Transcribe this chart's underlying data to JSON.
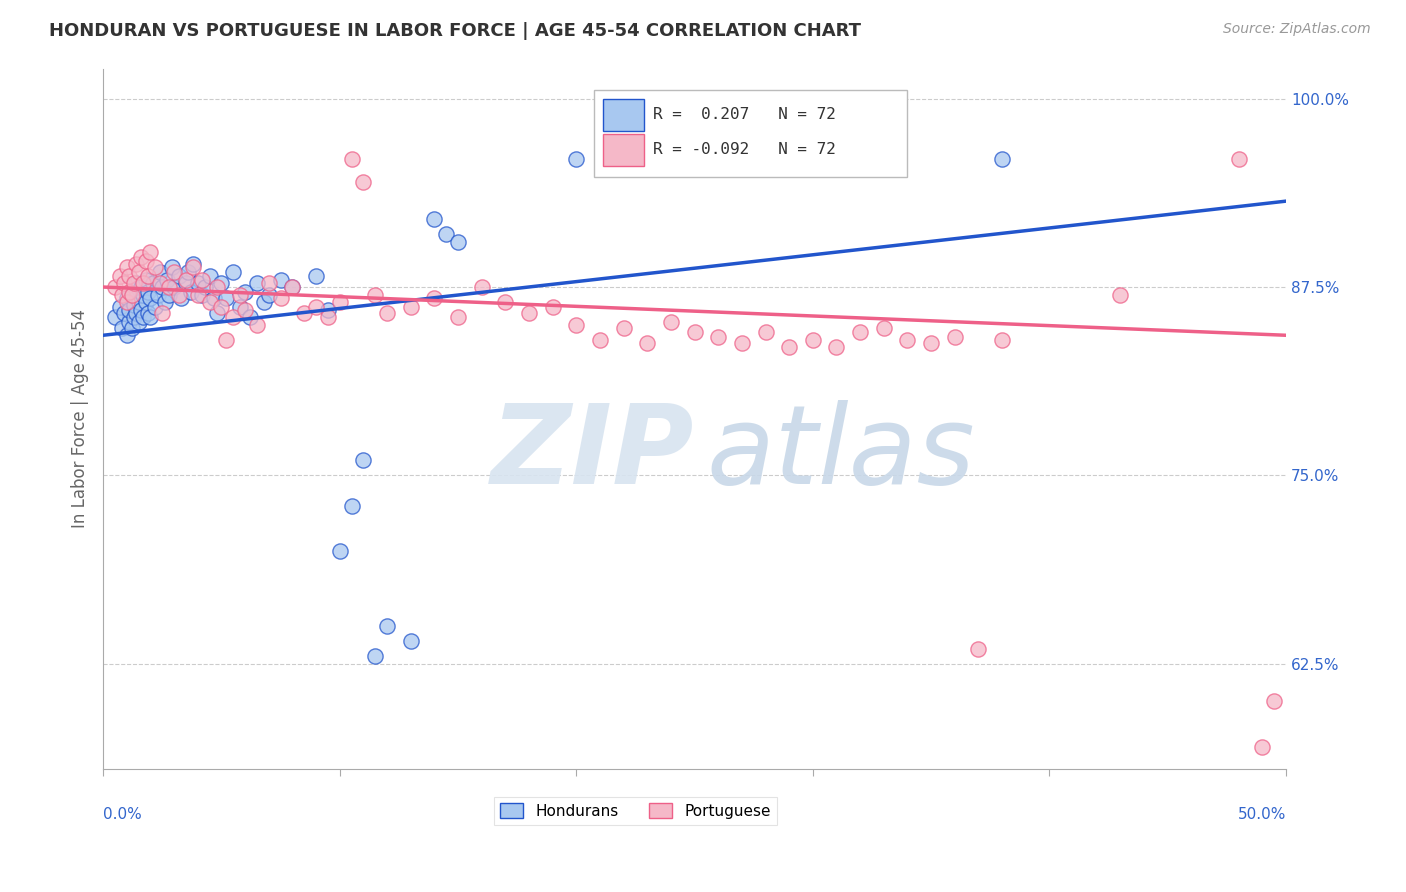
{
  "title": "HONDURAN VS PORTUGUESE IN LABOR FORCE | AGE 45-54 CORRELATION CHART",
  "source": "Source: ZipAtlas.com",
  "ylabel": "In Labor Force | Age 45-54",
  "ytick_labels": [
    "100.0%",
    "87.5%",
    "75.0%",
    "62.5%"
  ],
  "ytick_values": [
    1.0,
    0.875,
    0.75,
    0.625
  ],
  "xlim": [
    0.0,
    0.5
  ],
  "ylim": [
    0.555,
    1.02
  ],
  "blue_color": "#A8C8F0",
  "pink_color": "#F5B8C8",
  "blue_line_color": "#2255CC",
  "pink_line_color": "#EE6088",
  "scatter_size": 120,
  "blue_scatter": [
    [
      0.005,
      0.855
    ],
    [
      0.007,
      0.862
    ],
    [
      0.008,
      0.848
    ],
    [
      0.009,
      0.858
    ],
    [
      0.01,
      0.843
    ],
    [
      0.01,
      0.868
    ],
    [
      0.011,
      0.852
    ],
    [
      0.011,
      0.86
    ],
    [
      0.012,
      0.848
    ],
    [
      0.012,
      0.87
    ],
    [
      0.013,
      0.855
    ],
    [
      0.013,
      0.863
    ],
    [
      0.014,
      0.858
    ],
    [
      0.014,
      0.878
    ],
    [
      0.015,
      0.852
    ],
    [
      0.015,
      0.865
    ],
    [
      0.016,
      0.86
    ],
    [
      0.016,
      0.875
    ],
    [
      0.017,
      0.855
    ],
    [
      0.017,
      0.87
    ],
    [
      0.018,
      0.865
    ],
    [
      0.018,
      0.88
    ],
    [
      0.019,
      0.858
    ],
    [
      0.019,
      0.872
    ],
    [
      0.02,
      0.868
    ],
    [
      0.02,
      0.855
    ],
    [
      0.021,
      0.878
    ],
    [
      0.022,
      0.862
    ],
    [
      0.023,
      0.87
    ],
    [
      0.024,
      0.885
    ],
    [
      0.025,
      0.875
    ],
    [
      0.026,
      0.865
    ],
    [
      0.027,
      0.88
    ],
    [
      0.028,
      0.87
    ],
    [
      0.029,
      0.888
    ],
    [
      0.03,
      0.875
    ],
    [
      0.032,
      0.882
    ],
    [
      0.033,
      0.868
    ],
    [
      0.035,
      0.878
    ],
    [
      0.036,
      0.885
    ],
    [
      0.037,
      0.872
    ],
    [
      0.038,
      0.89
    ],
    [
      0.04,
      0.878
    ],
    [
      0.042,
      0.87
    ],
    [
      0.043,
      0.875
    ],
    [
      0.045,
      0.882
    ],
    [
      0.047,
      0.868
    ],
    [
      0.048,
      0.858
    ],
    [
      0.05,
      0.878
    ],
    [
      0.052,
      0.868
    ],
    [
      0.055,
      0.885
    ],
    [
      0.058,
      0.862
    ],
    [
      0.06,
      0.872
    ],
    [
      0.062,
      0.855
    ],
    [
      0.065,
      0.878
    ],
    [
      0.068,
      0.865
    ],
    [
      0.07,
      0.87
    ],
    [
      0.075,
      0.88
    ],
    [
      0.08,
      0.875
    ],
    [
      0.09,
      0.882
    ],
    [
      0.095,
      0.86
    ],
    [
      0.1,
      0.7
    ],
    [
      0.105,
      0.73
    ],
    [
      0.11,
      0.76
    ],
    [
      0.115,
      0.63
    ],
    [
      0.12,
      0.65
    ],
    [
      0.13,
      0.64
    ],
    [
      0.14,
      0.92
    ],
    [
      0.145,
      0.91
    ],
    [
      0.15,
      0.905
    ],
    [
      0.2,
      0.96
    ],
    [
      0.38,
      0.96
    ]
  ],
  "pink_scatter": [
    [
      0.005,
      0.875
    ],
    [
      0.007,
      0.882
    ],
    [
      0.008,
      0.87
    ],
    [
      0.009,
      0.878
    ],
    [
      0.01,
      0.865
    ],
    [
      0.01,
      0.888
    ],
    [
      0.011,
      0.872
    ],
    [
      0.011,
      0.882
    ],
    [
      0.012,
      0.87
    ],
    [
      0.013,
      0.878
    ],
    [
      0.014,
      0.89
    ],
    [
      0.015,
      0.885
    ],
    [
      0.016,
      0.895
    ],
    [
      0.017,
      0.878
    ],
    [
      0.018,
      0.892
    ],
    [
      0.019,
      0.882
    ],
    [
      0.02,
      0.898
    ],
    [
      0.022,
      0.888
    ],
    [
      0.024,
      0.878
    ],
    [
      0.025,
      0.858
    ],
    [
      0.028,
      0.875
    ],
    [
      0.03,
      0.885
    ],
    [
      0.032,
      0.87
    ],
    [
      0.035,
      0.88
    ],
    [
      0.038,
      0.888
    ],
    [
      0.04,
      0.87
    ],
    [
      0.042,
      0.88
    ],
    [
      0.045,
      0.865
    ],
    [
      0.048,
      0.875
    ],
    [
      0.05,
      0.862
    ],
    [
      0.052,
      0.84
    ],
    [
      0.055,
      0.855
    ],
    [
      0.058,
      0.87
    ],
    [
      0.06,
      0.86
    ],
    [
      0.065,
      0.85
    ],
    [
      0.07,
      0.878
    ],
    [
      0.075,
      0.868
    ],
    [
      0.08,
      0.875
    ],
    [
      0.085,
      0.858
    ],
    [
      0.09,
      0.862
    ],
    [
      0.095,
      0.855
    ],
    [
      0.1,
      0.865
    ],
    [
      0.105,
      0.96
    ],
    [
      0.11,
      0.945
    ],
    [
      0.115,
      0.87
    ],
    [
      0.12,
      0.858
    ],
    [
      0.13,
      0.862
    ],
    [
      0.14,
      0.868
    ],
    [
      0.15,
      0.855
    ],
    [
      0.16,
      0.875
    ],
    [
      0.17,
      0.865
    ],
    [
      0.18,
      0.858
    ],
    [
      0.19,
      0.862
    ],
    [
      0.2,
      0.85
    ],
    [
      0.21,
      0.84
    ],
    [
      0.22,
      0.848
    ],
    [
      0.23,
      0.838
    ],
    [
      0.24,
      0.852
    ],
    [
      0.25,
      0.845
    ],
    [
      0.26,
      0.842
    ],
    [
      0.27,
      0.838
    ],
    [
      0.28,
      0.845
    ],
    [
      0.29,
      0.835
    ],
    [
      0.3,
      0.84
    ],
    [
      0.31,
      0.835
    ],
    [
      0.32,
      0.845
    ],
    [
      0.33,
      0.848
    ],
    [
      0.34,
      0.84
    ],
    [
      0.35,
      0.838
    ],
    [
      0.36,
      0.842
    ],
    [
      0.37,
      0.635
    ],
    [
      0.38,
      0.84
    ],
    [
      0.43,
      0.87
    ],
    [
      0.48,
      0.96
    ],
    [
      0.49,
      0.57
    ],
    [
      0.495,
      0.6
    ]
  ],
  "blue_line_x": [
    0.0,
    0.5
  ],
  "blue_line_y": [
    0.843,
    0.932
  ],
  "pink_line_x": [
    0.0,
    0.5
  ],
  "pink_line_y": [
    0.875,
    0.843
  ],
  "watermark_zip": "ZIP",
  "watermark_atlas": "atlas",
  "background_color": "#FFFFFF",
  "grid_color": "#CCCCCC"
}
